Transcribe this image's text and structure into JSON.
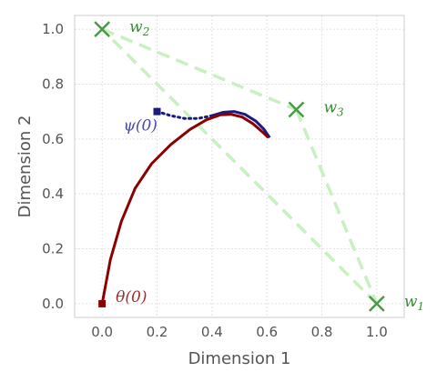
{
  "chart_data": {
    "type": "line",
    "xlabel": "Dimension 1",
    "ylabel": "Dimension 2",
    "xlim": [
      -0.1,
      1.1
    ],
    "ylim": [
      -0.05,
      1.05
    ],
    "x_ticks": [
      "0.0",
      "0.2",
      "0.4",
      "0.6",
      "0.8",
      "1.0"
    ],
    "y_ticks": [
      "0.0",
      "0.2",
      "0.4",
      "0.6",
      "0.8",
      "1.0"
    ],
    "grid": true,
    "weights": [
      {
        "id": "w1",
        "symbol": "w",
        "subscript": "1",
        "x": 1.0,
        "y": 0.0
      },
      {
        "id": "w2",
        "symbol": "w",
        "subscript": "2",
        "x": 0.0,
        "y": 1.0
      },
      {
        "id": "w3",
        "symbol": "w",
        "subscript": "3",
        "x": 0.707,
        "y": 0.707
      }
    ],
    "simplex_edges": [
      [
        "w2",
        "w3"
      ],
      [
        "w3",
        "w1"
      ],
      [
        "w1",
        "w2"
      ]
    ],
    "theta_path": {
      "label": "θ(0)",
      "color": "#8b0000",
      "points": [
        [
          0.0,
          0.0
        ],
        [
          0.03,
          0.16
        ],
        [
          0.07,
          0.3
        ],
        [
          0.12,
          0.42
        ],
        [
          0.18,
          0.51
        ],
        [
          0.25,
          0.58
        ],
        [
          0.32,
          0.635
        ],
        [
          0.38,
          0.67
        ],
        [
          0.43,
          0.688
        ],
        [
          0.47,
          0.69
        ],
        [
          0.51,
          0.68
        ],
        [
          0.55,
          0.655
        ],
        [
          0.59,
          0.62
        ],
        [
          0.605,
          0.605
        ]
      ]
    },
    "psi_path": {
      "label": "ψ(0)",
      "color": "#1a1a80",
      "dotted_points": [
        [
          0.2,
          0.7
        ],
        [
          0.25,
          0.685
        ],
        [
          0.3,
          0.675
        ],
        [
          0.35,
          0.675
        ],
        [
          0.4,
          0.685
        ]
      ],
      "solid_points": [
        [
          0.4,
          0.685
        ],
        [
          0.44,
          0.697
        ],
        [
          0.48,
          0.7
        ],
        [
          0.52,
          0.69
        ],
        [
          0.56,
          0.665
        ],
        [
          0.59,
          0.635
        ],
        [
          0.61,
          0.605
        ]
      ]
    },
    "colors": {
      "simplex": "#c8f0c0",
      "weight_marker": "#4a9a4a",
      "weight_label": "#3a8a3a",
      "grid": "#e2e2e2",
      "frame": "#cccccc"
    }
  }
}
